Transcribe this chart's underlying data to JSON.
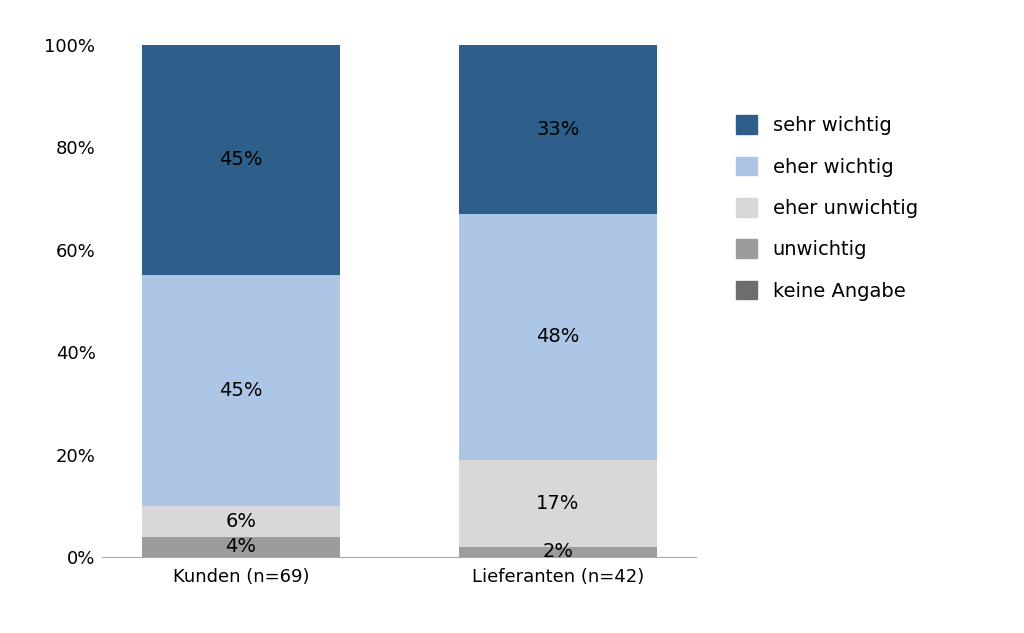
{
  "categories": [
    "Kunden (n=69)",
    "Lieferanten (n=42)"
  ],
  "segments": [
    "keine Angabe",
    "unwichtig",
    "eher unwichtig",
    "eher wichtig",
    "sehr wichtig"
  ],
  "values": {
    "Kunden (n=69)": [
      0,
      4,
      6,
      45,
      45
    ],
    "Lieferanten (n=42)": [
      0,
      2,
      17,
      48,
      33
    ]
  },
  "colors": [
    "#6d6d6d",
    "#9c9c9c",
    "#d8d8d8",
    "#adc6e5",
    "#2e5f8a"
  ],
  "legend_labels": [
    "sehr wichtig",
    "eher wichtig",
    "eher unwichtig",
    "unwichtig",
    "keine Angabe"
  ],
  "legend_colors": [
    "#2e5f8a",
    "#adc6e5",
    "#d8d8d8",
    "#9c9c9c",
    "#6d6d6d"
  ],
  "bar_width": 0.5,
  "ylim": [
    0,
    105
  ],
  "yticks": [
    0,
    20,
    40,
    60,
    80,
    100
  ],
  "yticklabels": [
    "0%",
    "20%",
    "40%",
    "60%",
    "80%",
    "100%"
  ],
  "label_fontsize": 14,
  "tick_fontsize": 13,
  "legend_fontsize": 14,
  "background_color": "#ffffff",
  "positions": [
    0.35,
    1.15
  ]
}
